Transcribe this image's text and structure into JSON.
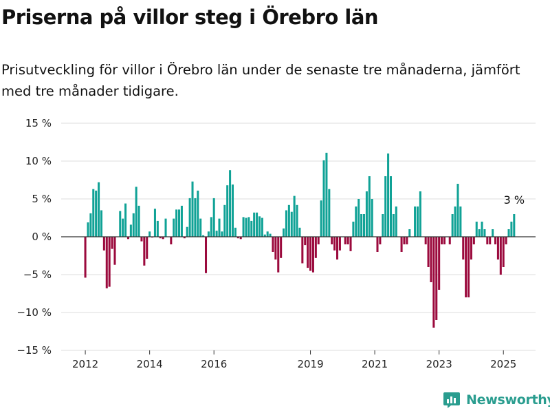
{
  "title": "Priserna på villor steg i Örebro län",
  "subtitle": "Prisutveckling för villor i Örebro län under de senaste tre månaderna, jämfört med tre månader tidigare.",
  "brand": {
    "name": "Newsworthy",
    "icon": "bar-chart-logo-icon",
    "color": "#2a9d8f"
  },
  "colors": {
    "positive": "#10a296",
    "negative": "#9b0a3d",
    "grid": "#dddddd",
    "zero_line": "#333333"
  },
  "chart_data": {
    "type": "bar",
    "title": "Priserna på villor steg i Örebro län",
    "ylabel": "",
    "xlabel": "",
    "ylim": [
      -15,
      15
    ],
    "y_ticks": [
      15,
      10,
      5,
      0,
      -5,
      -10,
      -15
    ],
    "y_tick_labels": [
      "15 %",
      "10 %",
      "5 %",
      "0 %",
      "−5 %",
      "−10 %",
      "−15 %"
    ],
    "x_ticks": [
      2012,
      2014,
      2016,
      2019,
      2021,
      2023,
      2025
    ],
    "x_tick_labels": [
      "2012",
      "2014",
      "2016",
      "2019",
      "2021",
      "2023",
      "2025"
    ],
    "x_range": [
      2011.25,
      2026.0
    ],
    "last_value_label": "3 %",
    "grid": true,
    "legend": "none",
    "start_month": "2012-01",
    "interval": "month",
    "values": [
      -5.4,
      1.9,
      3.1,
      6.3,
      6.1,
      7.2,
      3.5,
      -1.8,
      -6.8,
      -6.6,
      -1.6,
      -3.7,
      0,
      3.4,
      2.4,
      4.4,
      -0.3,
      1.6,
      3.1,
      6.6,
      4.1,
      -0.6,
      -3.8,
      -2.9,
      0.7,
      -0.1,
      3.7,
      2.1,
      -0.2,
      -0.3,
      2.4,
      0,
      -1.0,
      2.4,
      3.6,
      3.6,
      4.1,
      -0.2,
      1.3,
      5.1,
      7.3,
      5.1,
      6.1,
      2.4,
      0.2,
      -4.8,
      0.7,
      2.6,
      5.1,
      0.8,
      2.4,
      0.7,
      4.2,
      6.8,
      8.8,
      6.9,
      1.2,
      -0.2,
      -0.3,
      2.6,
      2.5,
      2.6,
      2.1,
      3.2,
      3.2,
      2.7,
      2.5,
      0.3,
      0.7,
      0.4,
      -2.0,
      -3.0,
      -4.7,
      -2.8,
      1.1,
      3.5,
      4.2,
      3.3,
      5.4,
      4.2,
      1.2,
      -3.5,
      -1.1,
      -4.1,
      -4.5,
      -4.7,
      -2.8,
      -1.0,
      4.8,
      10.1,
      11.1,
      6.3,
      -1.0,
      -1.8,
      -3.0,
      -1.8,
      0,
      -1.0,
      -1.0,
      -1.9,
      2.0,
      4.0,
      5.0,
      3.0,
      3.0,
      6.0,
      8.0,
      5.0,
      0,
      -2.0,
      -1.0,
      3.0,
      8.0,
      11.0,
      8.0,
      3.0,
      4.0,
      0,
      -2.0,
      -1.0,
      -1.0,
      1.0,
      0,
      4.0,
      4.0,
      6.0,
      0,
      -1.0,
      -4.0,
      -6.0,
      -12.0,
      -11.0,
      -7.0,
      -1.0,
      -1.0,
      0,
      -1.0,
      3.0,
      4.0,
      7.0,
      4.0,
      -3.0,
      -8.0,
      -8.0,
      -3.0,
      -1.0,
      2.0,
      1.0,
      2.0,
      1.0,
      -1.0,
      -1.0,
      1.0,
      -1.0,
      -3.0,
      -5.0,
      -4.0,
      -1.0,
      1.0,
      2.0,
      3.0
    ]
  }
}
